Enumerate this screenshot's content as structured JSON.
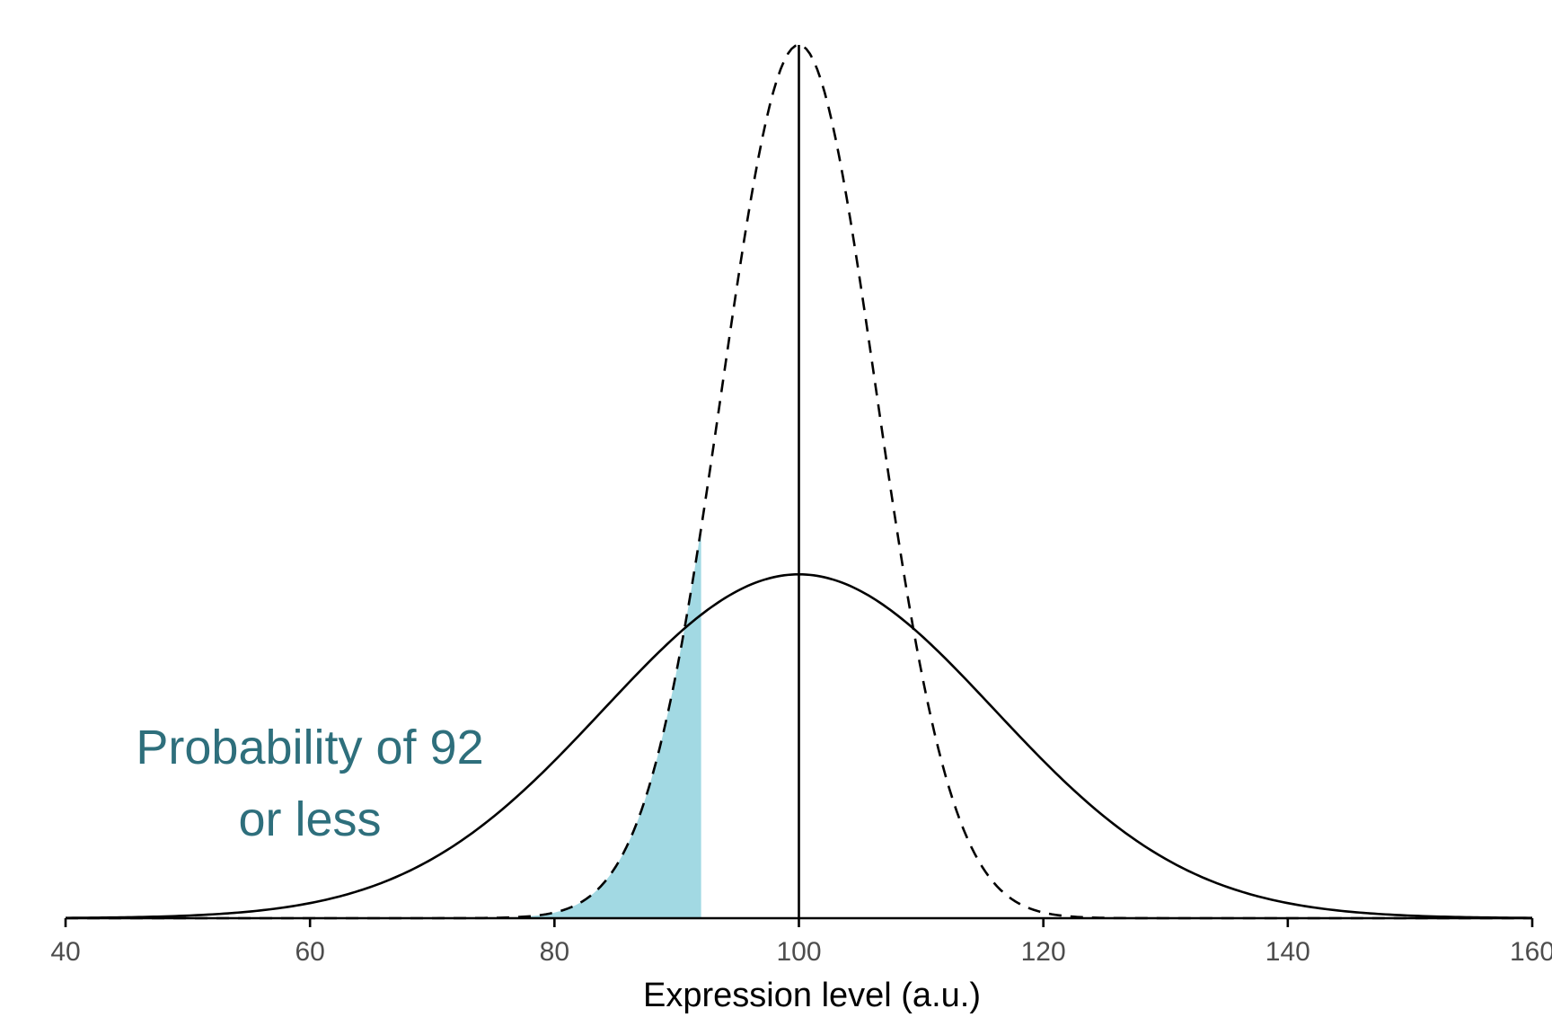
{
  "chart_data": {
    "type": "area",
    "title": "",
    "xlabel": "Expression level (a.u.)",
    "ylabel": "",
    "xlim": [
      40,
      160
    ],
    "x_ticks": [
      40,
      60,
      80,
      100,
      120,
      140,
      160
    ],
    "x_tick_labels": [
      "40",
      "60",
      "80",
      "100",
      "120",
      "140",
      "160"
    ],
    "grid": false,
    "legend": "none",
    "series": [
      {
        "style": "solid",
        "distribution": "normal",
        "mean": 100,
        "sd": 16,
        "color": "#000000"
      },
      {
        "style": "dashed",
        "distribution": "normal",
        "mean": 100,
        "sd": 6.3,
        "color": "#000000"
      }
    ],
    "mean_line": {
      "x": 100,
      "style": "solid",
      "color": "#000000"
    },
    "shaded_region": {
      "series_index": 1,
      "from": 40,
      "to": 92,
      "color": "#a2d9e3"
    },
    "annotation": {
      "lines": [
        "Probability of 92",
        "or less"
      ],
      "color": "#2e6f7c"
    }
  }
}
